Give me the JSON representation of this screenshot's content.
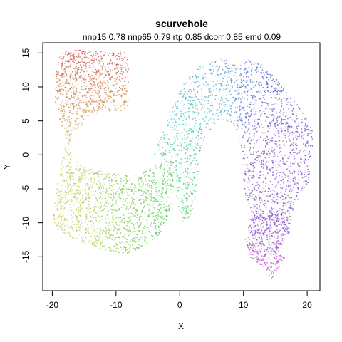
{
  "chart_data": {
    "type": "scatter",
    "title": "scurvehole",
    "subtitle": "nnp15 0.78 nnp65 0.79 rtp 0.85 dcorr 0.85 emd 0.09",
    "xlabel": "X",
    "ylabel": "Y",
    "xlim": [
      -21.5,
      22
    ],
    "ylim": [
      -20,
      16.5
    ],
    "xticks": [
      -20,
      -10,
      0,
      10,
      20
    ],
    "yticks": [
      -15,
      -10,
      -5,
      0,
      5,
      10,
      15
    ],
    "grid": false,
    "legend": "none",
    "point_color_scale": "rainbow hue along the curve: red (top-left) → olive → green → cyan → blue → magenta (bottom-right)",
    "regions": [
      {
        "name": "upper-left block",
        "polygon": [
          [
            -18.5,
            15.3
          ],
          [
            -16,
            15.4
          ],
          [
            -14,
            15.3
          ],
          [
            -12.5,
            15.2
          ],
          [
            -11,
            15.1
          ],
          [
            -8.3,
            15.2
          ],
          [
            -8,
            12
          ],
          [
            -8,
            9
          ],
          [
            -8.2,
            6.5
          ],
          [
            -10,
            6.5
          ],
          [
            -12.5,
            6.3
          ],
          [
            -14.5,
            5.5
          ],
          [
            -16,
            3.5
          ],
          [
            -17,
            2.3
          ],
          [
            -17.5,
            1.5
          ],
          [
            -18.5,
            4
          ],
          [
            -19.5,
            7
          ],
          [
            -19.5,
            10
          ],
          [
            -19.3,
            13
          ],
          [
            -18.8,
            14.5
          ]
        ],
        "hue_start": 0,
        "hue_end": 55
      },
      {
        "name": "lower-left block",
        "polygon": [
          [
            -18,
            1.5
          ],
          [
            -16.5,
            -0.5
          ],
          [
            -15,
            -1.8
          ],
          [
            -12,
            -2.5
          ],
          [
            -9,
            -3
          ],
          [
            -7,
            -3
          ],
          [
            -4.5,
            -2
          ],
          [
            -2.5,
            -0.5
          ],
          [
            -1.2,
            0
          ],
          [
            -1,
            -2
          ],
          [
            -1,
            -5
          ],
          [
            -1.5,
            -8
          ],
          [
            -2.5,
            -11
          ],
          [
            -4.5,
            -13
          ],
          [
            -7,
            -14.2
          ],
          [
            -9,
            -14.6
          ],
          [
            -12,
            -14
          ],
          [
            -15,
            -13
          ],
          [
            -17.5,
            -12
          ],
          [
            -19.5,
            -11
          ],
          [
            -20,
            -9
          ],
          [
            -19.5,
            -6
          ],
          [
            -19,
            -3
          ],
          [
            -18.5,
            -0.5
          ]
        ],
        "hue_start": 55,
        "hue_end": 125
      },
      {
        "name": "central S band",
        "polygon": [
          [
            -4,
            0
          ],
          [
            -2.8,
            3
          ],
          [
            -1.5,
            6.5
          ],
          [
            0,
            9.5
          ],
          [
            1.5,
            11.5
          ],
          [
            3,
            13
          ],
          [
            5,
            14
          ],
          [
            7,
            14.3
          ],
          [
            9,
            14.2
          ],
          [
            11,
            14
          ],
          [
            13,
            13.2
          ],
          [
            16,
            10.5
          ],
          [
            18,
            8
          ],
          [
            20,
            5.5
          ],
          [
            21,
            3
          ],
          [
            20.8,
            -1
          ],
          [
            20.2,
            -4
          ],
          [
            19,
            -6
          ],
          [
            18,
            -8
          ],
          [
            17.5,
            -10
          ],
          [
            15,
            -10
          ],
          [
            12,
            -9.5
          ],
          [
            10.5,
            -7
          ],
          [
            10,
            -4
          ],
          [
            10,
            -1
          ],
          [
            9.5,
            2
          ],
          [
            8.5,
            4.5
          ],
          [
            6.5,
            5.2
          ],
          [
            5,
            4
          ],
          [
            3.5,
            1.5
          ],
          [
            3,
            -2
          ],
          [
            2.5,
            -6
          ],
          [
            2,
            -9.5
          ],
          [
            0.5,
            -10
          ],
          [
            -0.5,
            -7
          ],
          [
            -0.7,
            -3
          ],
          [
            -1.5,
            -1
          ]
        ],
        "hue_start": 125,
        "hue_end": 265
      },
      {
        "name": "lower-right lobe",
        "polygon": [
          [
            11,
            -9.5
          ],
          [
            13,
            -8.8
          ],
          [
            16,
            -8.5
          ],
          [
            17.5,
            -9.5
          ],
          [
            17.5,
            -11
          ],
          [
            16.5,
            -12.5
          ],
          [
            15.5,
            -14
          ],
          [
            16.5,
            -15
          ],
          [
            15.5,
            -17
          ],
          [
            14.5,
            -18.3
          ],
          [
            13,
            -16.5
          ],
          [
            11,
            -15
          ],
          [
            10.3,
            -12.5
          ]
        ],
        "hue_start": 265,
        "hue_end": 300
      }
    ],
    "points_per_region": [
      900,
      1400,
      2000,
      500
    ]
  }
}
